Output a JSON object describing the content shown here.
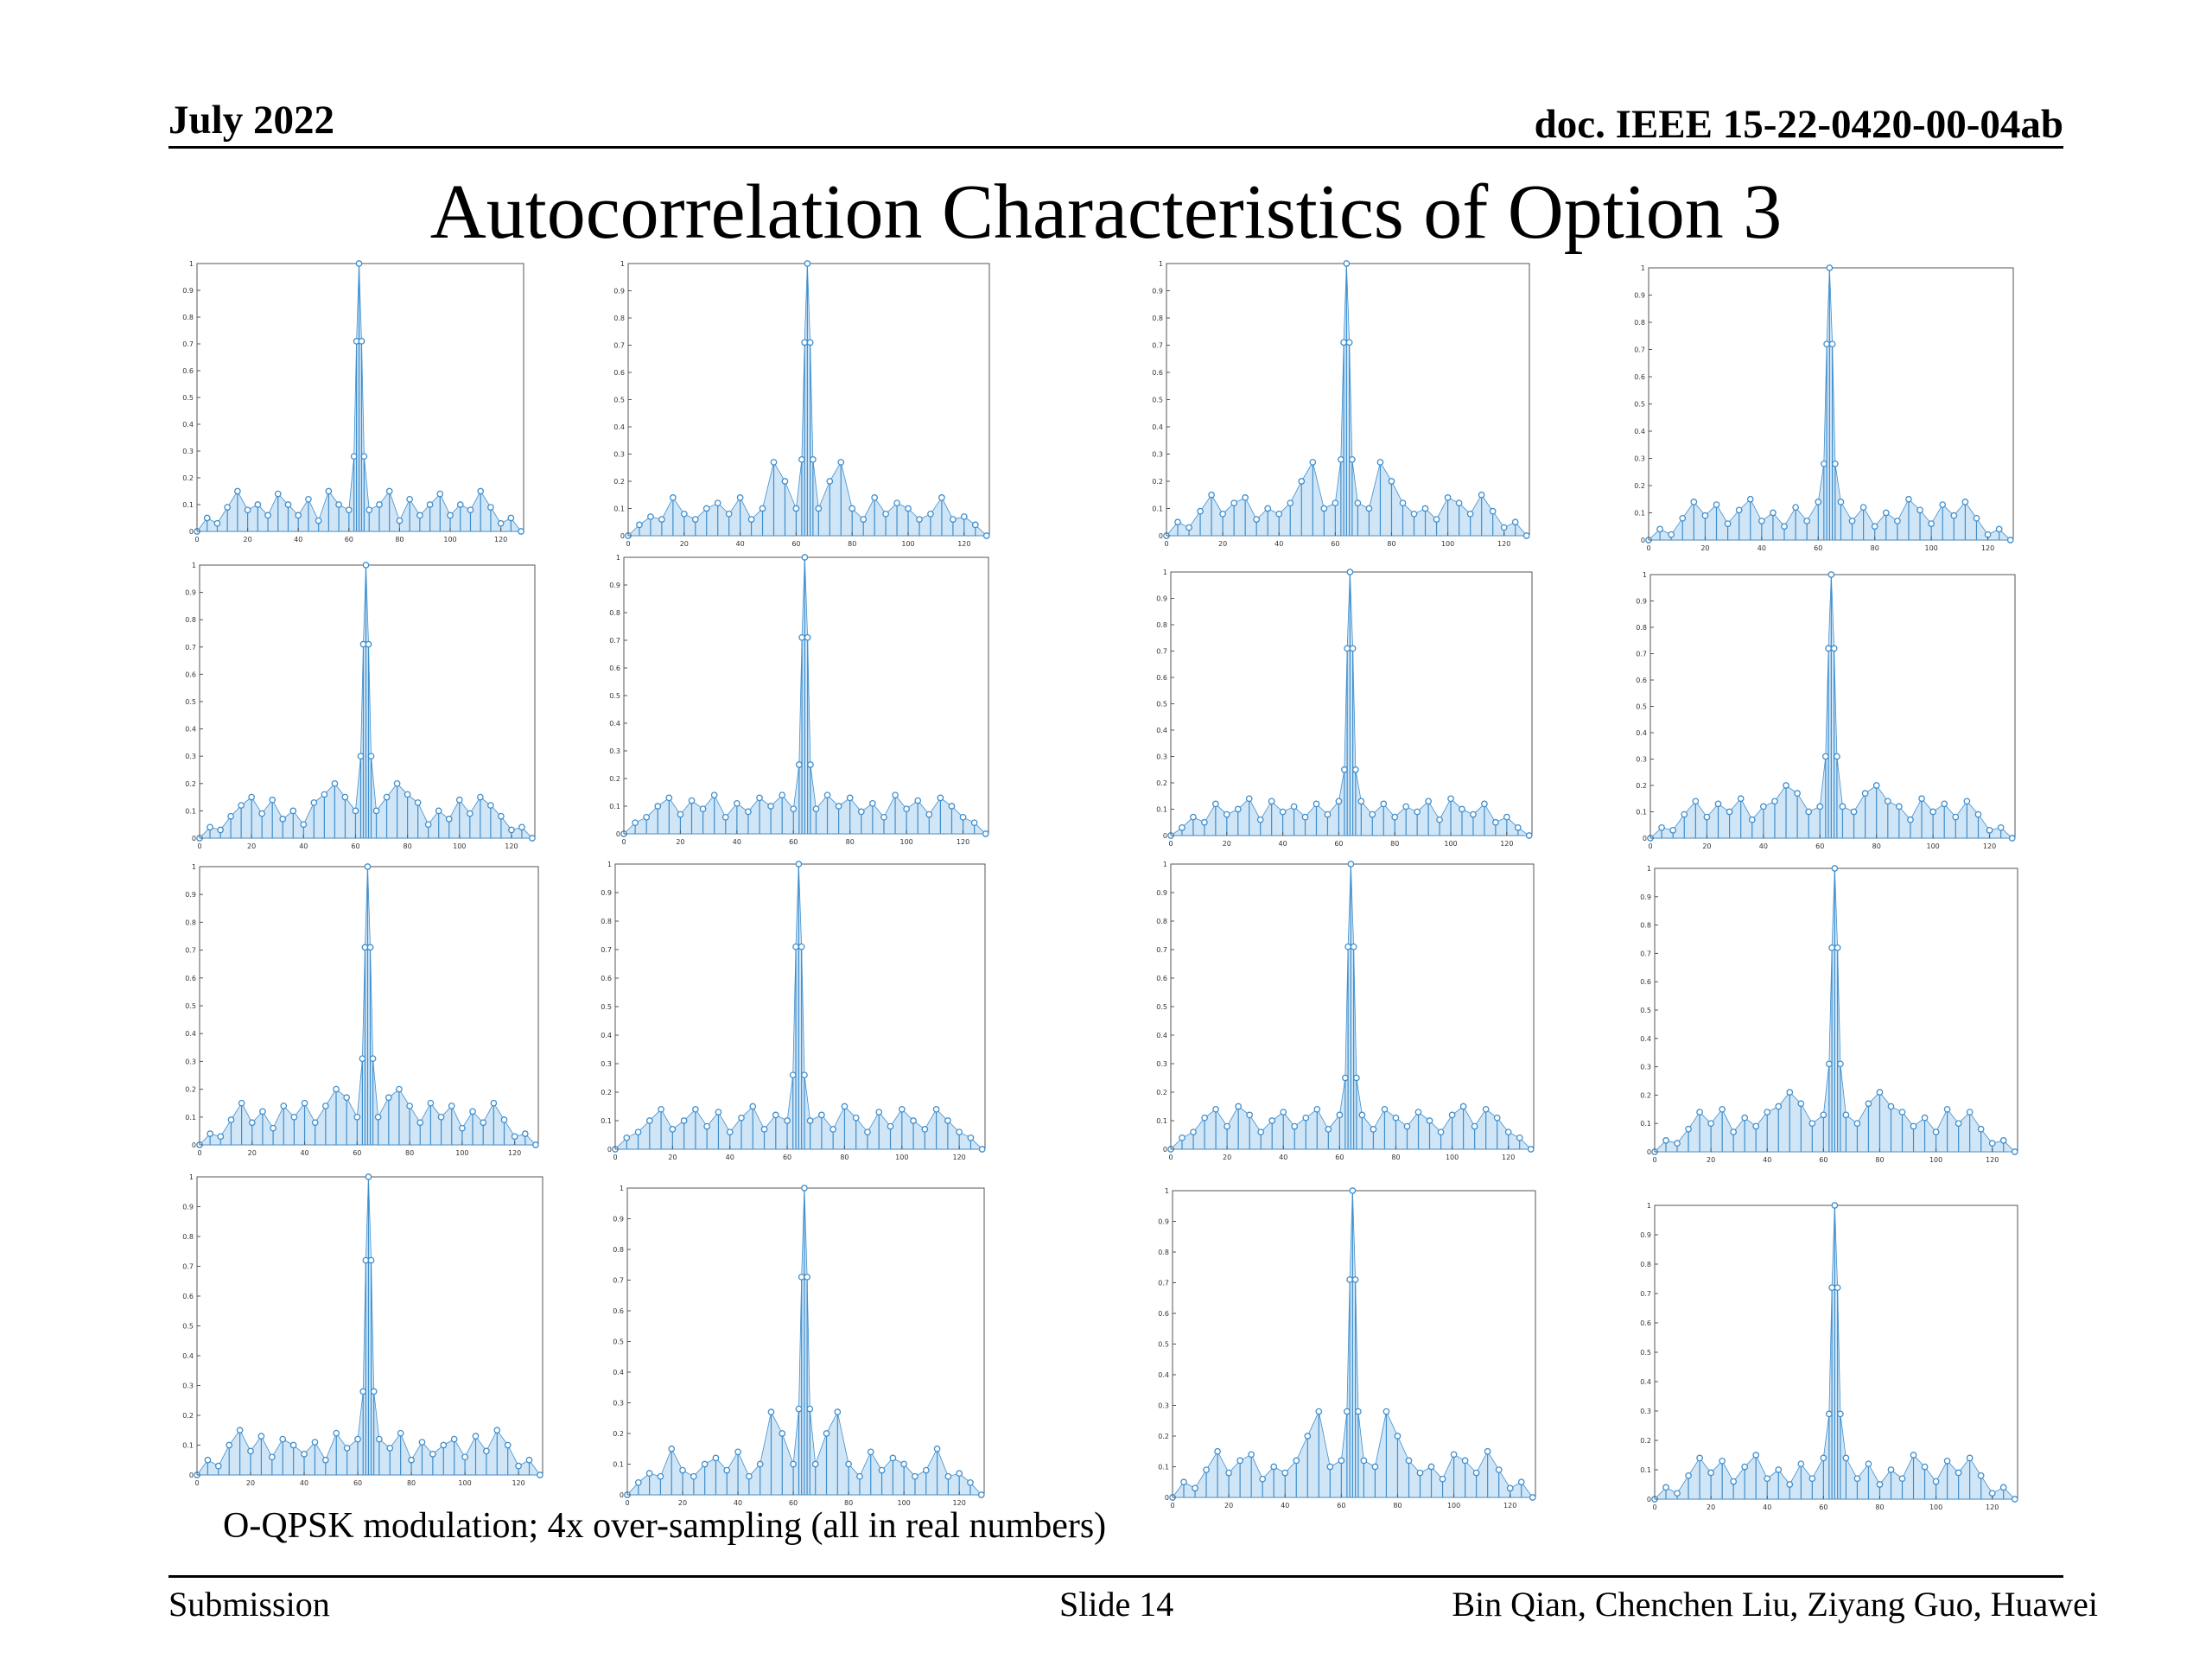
{
  "header": {
    "date": "July 2022",
    "doc": "doc. IEEE 15-22-0420-00-04ab"
  },
  "title": "Autocorrelation Characteristics of Option 3",
  "caption": "O-QPSK modulation; 4x over-sampling (all in real numbers)",
  "footer": {
    "left": "Submission",
    "center": "Slide 14",
    "right": "Bin Qian, Chenchen Liu, Ziyang Guo, Huawei"
  },
  "colors": {
    "stem": "#3f8fce",
    "fill": "#a9d0ee",
    "marker": "#3f8fce"
  },
  "chart_data": {
    "type": "stem",
    "count": 16,
    "x_range": [
      0,
      129
    ],
    "y_range": [
      0,
      1
    ],
    "x_ticks": [
      0,
      20,
      40,
      60,
      80,
      100,
      120
    ],
    "y_ticks": [
      0,
      0.1,
      0.2,
      0.3,
      0.4,
      0.5,
      0.6,
      0.7,
      0.8,
      0.9,
      1
    ],
    "x_tick_labels": [
      "0",
      "20",
      "40",
      "60",
      "80",
      "100",
      "120"
    ],
    "y_tick_labels": [
      "0",
      "0.1",
      "0.2",
      "0.3",
      "0.4",
      "0.5",
      "0.6",
      "0.7",
      "0.8",
      "0.9",
      "1"
    ],
    "series": [
      {
        "x": [
          0,
          4,
          8,
          12,
          16,
          20,
          24,
          28,
          32,
          36,
          40,
          44,
          48,
          52,
          56,
          60,
          62,
          63,
          64,
          65,
          66,
          68,
          72,
          76,
          80,
          84,
          88,
          92,
          96,
          100,
          104,
          108,
          112,
          116,
          120,
          124,
          128
        ],
        "y": [
          0,
          0.05,
          0.03,
          0.09,
          0.15,
          0.08,
          0.1,
          0.06,
          0.14,
          0.1,
          0.06,
          0.12,
          0.04,
          0.15,
          0.1,
          0.08,
          0.28,
          0.71,
          1,
          0.71,
          0.28,
          0.08,
          0.1,
          0.15,
          0.04,
          0.12,
          0.06,
          0.1,
          0.14,
          0.06,
          0.1,
          0.08,
          0.15,
          0.09,
          0.03,
          0.05,
          0
        ]
      },
      {
        "x": [
          0,
          4,
          8,
          12,
          16,
          20,
          24,
          28,
          32,
          36,
          40,
          44,
          48,
          52,
          56,
          60,
          62,
          63,
          64,
          65,
          66,
          68,
          72,
          76,
          80,
          84,
          88,
          92,
          96,
          100,
          104,
          108,
          112,
          116,
          120,
          124,
          128
        ],
        "y": [
          0,
          0.04,
          0.07,
          0.06,
          0.14,
          0.08,
          0.06,
          0.1,
          0.12,
          0.08,
          0.14,
          0.06,
          0.1,
          0.27,
          0.2,
          0.1,
          0.28,
          0.71,
          1,
          0.71,
          0.28,
          0.1,
          0.2,
          0.27,
          0.1,
          0.06,
          0.14,
          0.08,
          0.12,
          0.1,
          0.06,
          0.08,
          0.14,
          0.06,
          0.07,
          0.04,
          0
        ]
      },
      {
        "x": [
          0,
          4,
          8,
          12,
          16,
          20,
          24,
          28,
          32,
          36,
          40,
          44,
          48,
          52,
          56,
          60,
          62,
          63,
          64,
          65,
          66,
          68,
          72,
          76,
          80,
          84,
          88,
          92,
          96,
          100,
          104,
          108,
          112,
          116,
          120,
          124,
          128
        ],
        "y": [
          0,
          0.05,
          0.03,
          0.09,
          0.15,
          0.08,
          0.12,
          0.14,
          0.06,
          0.1,
          0.08,
          0.12,
          0.2,
          0.27,
          0.1,
          0.12,
          0.28,
          0.71,
          1,
          0.71,
          0.28,
          0.12,
          0.1,
          0.27,
          0.2,
          0.12,
          0.08,
          0.1,
          0.06,
          0.14,
          0.12,
          0.08,
          0.15,
          0.09,
          0.03,
          0.05,
          0
        ]
      },
      {
        "x": [
          0,
          4,
          8,
          12,
          16,
          20,
          24,
          28,
          32,
          36,
          40,
          44,
          48,
          52,
          56,
          60,
          62,
          63,
          64,
          65,
          66,
          68,
          72,
          76,
          80,
          84,
          88,
          92,
          96,
          100,
          104,
          108,
          112,
          116,
          120,
          124,
          128
        ],
        "y": [
          0,
          0.04,
          0.02,
          0.08,
          0.14,
          0.09,
          0.13,
          0.06,
          0.11,
          0.15,
          0.07,
          0.1,
          0.05,
          0.12,
          0.07,
          0.14,
          0.28,
          0.72,
          1,
          0.72,
          0.28,
          0.14,
          0.07,
          0.12,
          0.05,
          0.1,
          0.07,
          0.15,
          0.11,
          0.06,
          0.13,
          0.09,
          0.14,
          0.08,
          0.02,
          0.04,
          0
        ]
      },
      {
        "x": [
          0,
          4,
          8,
          12,
          16,
          20,
          24,
          28,
          32,
          36,
          40,
          44,
          48,
          52,
          56,
          60,
          62,
          63,
          64,
          65,
          66,
          68,
          72,
          76,
          80,
          84,
          88,
          92,
          96,
          100,
          104,
          108,
          112,
          116,
          120,
          124,
          128
        ],
        "y": [
          0,
          0.04,
          0.03,
          0.08,
          0.12,
          0.15,
          0.09,
          0.14,
          0.07,
          0.1,
          0.05,
          0.13,
          0.16,
          0.2,
          0.15,
          0.1,
          0.3,
          0.71,
          1,
          0.71,
          0.3,
          0.1,
          0.15,
          0.2,
          0.16,
          0.13,
          0.05,
          0.1,
          0.07,
          0.14,
          0.09,
          0.15,
          0.12,
          0.08,
          0.03,
          0.04,
          0
        ]
      },
      {
        "x": [
          0,
          4,
          8,
          12,
          16,
          20,
          24,
          28,
          32,
          36,
          40,
          44,
          48,
          52,
          56,
          60,
          62,
          63,
          64,
          65,
          66,
          68,
          72,
          76,
          80,
          84,
          88,
          92,
          96,
          100,
          104,
          108,
          112,
          116,
          120,
          124,
          128
        ],
        "y": [
          0,
          0.04,
          0.06,
          0.1,
          0.13,
          0.07,
          0.12,
          0.09,
          0.14,
          0.06,
          0.11,
          0.08,
          0.13,
          0.1,
          0.14,
          0.09,
          0.25,
          0.71,
          1,
          0.71,
          0.25,
          0.09,
          0.14,
          0.1,
          0.13,
          0.08,
          0.11,
          0.06,
          0.14,
          0.09,
          0.12,
          0.07,
          0.13,
          0.1,
          0.06,
          0.04,
          0
        ]
      },
      {
        "x": [
          0,
          4,
          8,
          12,
          16,
          20,
          24,
          28,
          32,
          36,
          40,
          44,
          48,
          52,
          56,
          60,
          62,
          63,
          64,
          65,
          66,
          68,
          72,
          76,
          80,
          84,
          88,
          92,
          96,
          100,
          104,
          108,
          112,
          116,
          120,
          124,
          128
        ],
        "y": [
          0,
          0.03,
          0.07,
          0.05,
          0.12,
          0.08,
          0.1,
          0.14,
          0.06,
          0.13,
          0.09,
          0.11,
          0.07,
          0.12,
          0.08,
          0.13,
          0.25,
          0.71,
          1,
          0.71,
          0.25,
          0.13,
          0.08,
          0.12,
          0.07,
          0.11,
          0.09,
          0.13,
          0.06,
          0.14,
          0.1,
          0.08,
          0.12,
          0.05,
          0.07,
          0.03,
          0
        ]
      },
      {
        "x": [
          0,
          4,
          8,
          12,
          16,
          20,
          24,
          28,
          32,
          36,
          40,
          44,
          48,
          52,
          56,
          60,
          62,
          63,
          64,
          65,
          66,
          68,
          72,
          76,
          80,
          84,
          88,
          92,
          96,
          100,
          104,
          108,
          112,
          116,
          120,
          124,
          128
        ],
        "y": [
          0,
          0.04,
          0.03,
          0.09,
          0.14,
          0.08,
          0.13,
          0.1,
          0.15,
          0.07,
          0.12,
          0.14,
          0.2,
          0.17,
          0.1,
          0.12,
          0.31,
          0.72,
          1,
          0.72,
          0.31,
          0.12,
          0.1,
          0.17,
          0.2,
          0.14,
          0.12,
          0.07,
          0.15,
          0.1,
          0.13,
          0.08,
          0.14,
          0.09,
          0.03,
          0.04,
          0
        ]
      },
      {
        "x": [
          0,
          4,
          8,
          12,
          16,
          20,
          24,
          28,
          32,
          36,
          40,
          44,
          48,
          52,
          56,
          60,
          62,
          63,
          64,
          65,
          66,
          68,
          72,
          76,
          80,
          84,
          88,
          92,
          96,
          100,
          104,
          108,
          112,
          116,
          120,
          124,
          128
        ],
        "y": [
          0,
          0.04,
          0.03,
          0.09,
          0.15,
          0.08,
          0.12,
          0.06,
          0.14,
          0.1,
          0.15,
          0.08,
          0.14,
          0.2,
          0.17,
          0.1,
          0.31,
          0.71,
          1,
          0.71,
          0.31,
          0.1,
          0.17,
          0.2,
          0.14,
          0.08,
          0.15,
          0.1,
          0.14,
          0.06,
          0.12,
          0.08,
          0.15,
          0.09,
          0.03,
          0.04,
          0
        ]
      },
      {
        "x": [
          0,
          4,
          8,
          12,
          16,
          20,
          24,
          28,
          32,
          36,
          40,
          44,
          48,
          52,
          56,
          60,
          62,
          63,
          64,
          65,
          66,
          68,
          72,
          76,
          80,
          84,
          88,
          92,
          96,
          100,
          104,
          108,
          112,
          116,
          120,
          124,
          128
        ],
        "y": [
          0,
          0.04,
          0.06,
          0.1,
          0.14,
          0.07,
          0.1,
          0.14,
          0.08,
          0.13,
          0.06,
          0.11,
          0.15,
          0.07,
          0.12,
          0.1,
          0.26,
          0.71,
          1,
          0.71,
          0.26,
          0.1,
          0.12,
          0.07,
          0.15,
          0.11,
          0.06,
          0.13,
          0.08,
          0.14,
          0.1,
          0.07,
          0.14,
          0.1,
          0.06,
          0.04,
          0
        ]
      },
      {
        "x": [
          0,
          4,
          8,
          12,
          16,
          20,
          24,
          28,
          32,
          36,
          40,
          44,
          48,
          52,
          56,
          60,
          62,
          63,
          64,
          65,
          66,
          68,
          72,
          76,
          80,
          84,
          88,
          92,
          96,
          100,
          104,
          108,
          112,
          116,
          120,
          124,
          128
        ],
        "y": [
          0,
          0.04,
          0.06,
          0.11,
          0.14,
          0.08,
          0.15,
          0.12,
          0.06,
          0.1,
          0.13,
          0.08,
          0.11,
          0.14,
          0.07,
          0.12,
          0.25,
          0.71,
          1,
          0.71,
          0.25,
          0.12,
          0.07,
          0.14,
          0.11,
          0.08,
          0.13,
          0.1,
          0.06,
          0.12,
          0.15,
          0.08,
          0.14,
          0.11,
          0.06,
          0.04,
          0
        ]
      },
      {
        "x": [
          0,
          4,
          8,
          12,
          16,
          20,
          24,
          28,
          32,
          36,
          40,
          44,
          48,
          52,
          56,
          60,
          62,
          63,
          64,
          65,
          66,
          68,
          72,
          76,
          80,
          84,
          88,
          92,
          96,
          100,
          104,
          108,
          112,
          116,
          120,
          124,
          128
        ],
        "y": [
          0,
          0.04,
          0.03,
          0.08,
          0.14,
          0.1,
          0.15,
          0.07,
          0.12,
          0.09,
          0.14,
          0.16,
          0.21,
          0.17,
          0.1,
          0.13,
          0.31,
          0.72,
          1,
          0.72,
          0.31,
          0.13,
          0.1,
          0.17,
          0.21,
          0.16,
          0.14,
          0.09,
          0.12,
          0.07,
          0.15,
          0.1,
          0.14,
          0.08,
          0.03,
          0.04,
          0
        ]
      },
      {
        "x": [
          0,
          4,
          8,
          12,
          16,
          20,
          24,
          28,
          32,
          36,
          40,
          44,
          48,
          52,
          56,
          60,
          62,
          63,
          64,
          65,
          66,
          68,
          72,
          76,
          80,
          84,
          88,
          92,
          96,
          100,
          104,
          108,
          112,
          116,
          120,
          124,
          128
        ],
        "y": [
          0,
          0.05,
          0.03,
          0.1,
          0.15,
          0.08,
          0.13,
          0.06,
          0.12,
          0.1,
          0.07,
          0.11,
          0.05,
          0.14,
          0.09,
          0.12,
          0.28,
          0.72,
          1,
          0.72,
          0.28,
          0.12,
          0.09,
          0.14,
          0.05,
          0.11,
          0.07,
          0.1,
          0.12,
          0.06,
          0.13,
          0.08,
          0.15,
          0.1,
          0.03,
          0.05,
          0
        ]
      },
      {
        "x": [
          0,
          4,
          8,
          12,
          16,
          20,
          24,
          28,
          32,
          36,
          40,
          44,
          48,
          52,
          56,
          60,
          62,
          63,
          64,
          65,
          66,
          68,
          72,
          76,
          80,
          84,
          88,
          92,
          96,
          100,
          104,
          108,
          112,
          116,
          120,
          124,
          128
        ],
        "y": [
          0,
          0.04,
          0.07,
          0.06,
          0.15,
          0.08,
          0.06,
          0.1,
          0.12,
          0.08,
          0.14,
          0.06,
          0.1,
          0.27,
          0.2,
          0.1,
          0.28,
          0.71,
          1,
          0.71,
          0.28,
          0.1,
          0.2,
          0.27,
          0.1,
          0.06,
          0.14,
          0.08,
          0.12,
          0.1,
          0.06,
          0.08,
          0.15,
          0.06,
          0.07,
          0.04,
          0
        ]
      },
      {
        "x": [
          0,
          4,
          8,
          12,
          16,
          20,
          24,
          28,
          32,
          36,
          40,
          44,
          48,
          52,
          56,
          60,
          62,
          63,
          64,
          65,
          66,
          68,
          72,
          76,
          80,
          84,
          88,
          92,
          96,
          100,
          104,
          108,
          112,
          116,
          120,
          124,
          128
        ],
        "y": [
          0,
          0.05,
          0.03,
          0.09,
          0.15,
          0.08,
          0.12,
          0.14,
          0.06,
          0.1,
          0.08,
          0.12,
          0.2,
          0.28,
          0.1,
          0.12,
          0.28,
          0.71,
          1,
          0.71,
          0.28,
          0.12,
          0.1,
          0.28,
          0.2,
          0.12,
          0.08,
          0.1,
          0.06,
          0.14,
          0.12,
          0.08,
          0.15,
          0.09,
          0.03,
          0.05,
          0
        ]
      },
      {
        "x": [
          0,
          4,
          8,
          12,
          16,
          20,
          24,
          28,
          32,
          36,
          40,
          44,
          48,
          52,
          56,
          60,
          62,
          63,
          64,
          65,
          66,
          68,
          72,
          76,
          80,
          84,
          88,
          92,
          96,
          100,
          104,
          108,
          112,
          116,
          120,
          124,
          128
        ],
        "y": [
          0,
          0.04,
          0.02,
          0.08,
          0.14,
          0.09,
          0.13,
          0.06,
          0.11,
          0.15,
          0.07,
          0.1,
          0.05,
          0.12,
          0.07,
          0.14,
          0.29,
          0.72,
          1,
          0.72,
          0.29,
          0.14,
          0.07,
          0.12,
          0.05,
          0.1,
          0.07,
          0.15,
          0.11,
          0.06,
          0.13,
          0.09,
          0.14,
          0.08,
          0.02,
          0.04,
          0
        ]
      }
    ]
  }
}
